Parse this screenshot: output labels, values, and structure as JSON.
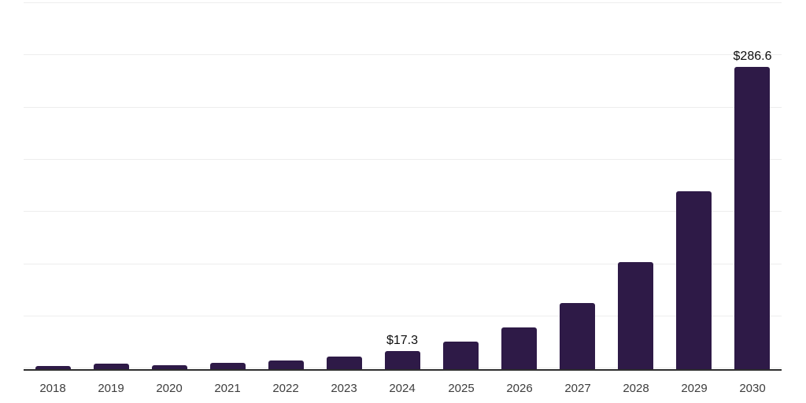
{
  "chart_data": {
    "type": "bar",
    "title": "",
    "xlabel": "",
    "ylabel": "",
    "categories": [
      "2018",
      "2019",
      "2020",
      "2021",
      "2022",
      "2023",
      "2024",
      "2025",
      "2026",
      "2027",
      "2028",
      "2029",
      "2030"
    ],
    "values": [
      3.2,
      5.4,
      4.1,
      6.3,
      8.4,
      12.0,
      17.3,
      25.8,
      39.8,
      62.7,
      101.5,
      168.5,
      286.6
    ],
    "bar_labels": [
      "",
      "",
      "",
      "",
      "",
      "",
      "$17.3",
      "",
      "",
      "",
      "",
      "",
      "$286.6"
    ],
    "ylim": [
      0,
      350
    ],
    "gridline_step": 50,
    "grid": "horizontal",
    "legend": "none",
    "y_axis_tick_labels_visible": false
  },
  "colors": {
    "bar": "#2e1a47",
    "gridline": "#ededed",
    "axis": "#2e2e2e",
    "tick_label": "#3d3d3d",
    "value_label": "#0d0d0d",
    "background": "#ffffff"
  }
}
